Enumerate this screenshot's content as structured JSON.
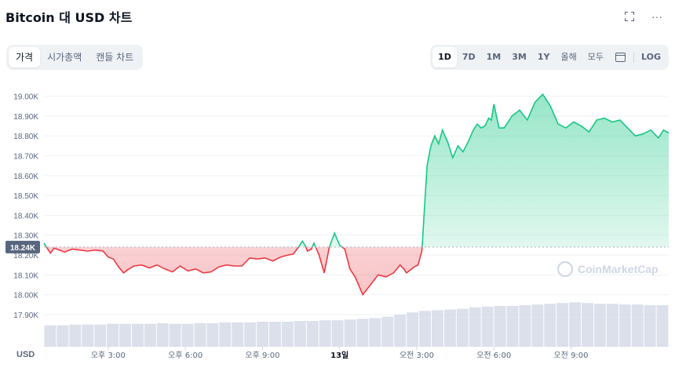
{
  "header": {
    "title": "Bitcoin 대 USD 차트"
  },
  "top_icons": {
    "expand": "expand-icon",
    "more": "···"
  },
  "tabs": [
    {
      "label": "가격",
      "active": true
    },
    {
      "label": "시가총액",
      "active": false
    },
    {
      "label": "캔들 차트",
      "active": false
    }
  ],
  "ranges": [
    {
      "label": "1D",
      "active": true
    },
    {
      "label": "7D",
      "active": false
    },
    {
      "label": "1M",
      "active": false
    },
    {
      "label": "3M",
      "active": false
    },
    {
      "label": "1Y",
      "active": false
    },
    {
      "label": "올해",
      "active": false
    },
    {
      "label": "모두",
      "active": false
    }
  ],
  "calendar_icon": "calendar-icon",
  "log_label": "LOG",
  "chart_data": {
    "type": "area",
    "title": "",
    "xlabel": "",
    "ylabel": "",
    "currency_label": "USD",
    "watermark": "CoinMarketCap",
    "reference_price": 18240,
    "reference_label": "18.24K",
    "ylim": [
      17880,
      19050
    ],
    "y_ticks": [
      17900,
      18000,
      18100,
      18200,
      18300,
      18400,
      18500,
      18600,
      18700,
      18800,
      18900,
      19000
    ],
    "y_tick_labels": [
      "17.90K",
      "18.00K",
      "18.10K",
      "18.20K",
      "18.30K",
      "18.40K",
      "18.50K",
      "18.60K",
      "18.70K",
      "18.80K",
      "18.90K",
      "19.00K"
    ],
    "xlim": [
      12.5,
      36.8
    ],
    "x_ticks": [
      15,
      18,
      21,
      24,
      27,
      30,
      33
    ],
    "x_tick_labels": [
      "오후 3:00",
      "오후 6:00",
      "오후 9:00",
      "13일",
      "오전 3:00",
      "오전 6:00",
      "오전 9:00"
    ],
    "colors": {
      "up": "#16c784",
      "down": "#ea3943",
      "grid": "#eff2f5",
      "volume": "#cfd6e4"
    },
    "series": [
      {
        "x": [
          12.5,
          12.75,
          12.9,
          13.1,
          13.3,
          13.6,
          13.9,
          14.2,
          14.5,
          14.8,
          15.0,
          15.2,
          15.4,
          15.6,
          15.8,
          16.0,
          16.3,
          16.6,
          16.9,
          17.2,
          17.5,
          17.8,
          18.1,
          18.4,
          18.7,
          19.0,
          19.3,
          19.6,
          19.9,
          20.2,
          20.5,
          20.8,
          21.1,
          21.4,
          21.7,
          22.0,
          22.2,
          22.4,
          22.55,
          22.65,
          22.75,
          22.9,
          23.0,
          23.2,
          23.4,
          23.6,
          23.8,
          24.0,
          24.2,
          24.4,
          24.6,
          24.9,
          25.2,
          25.5,
          25.8,
          26.1,
          26.35,
          26.5,
          26.6,
          26.75,
          26.9,
          27.05,
          27.2,
          27.4,
          27.55,
          27.7,
          27.85,
          28.0,
          28.2,
          28.4,
          28.6,
          28.8,
          29.0,
          29.2,
          29.35,
          29.5,
          29.65,
          29.8,
          29.9,
          30.0,
          30.2,
          30.4,
          30.7,
          31.0,
          31.3,
          31.6,
          31.9,
          32.2,
          32.5,
          32.8,
          33.1,
          33.4,
          33.7,
          34.0,
          34.3,
          34.6,
          34.9,
          35.2,
          35.5,
          35.8,
          36.1,
          36.4,
          36.6,
          36.8
        ],
        "y": [
          18260,
          18210,
          18235,
          18225,
          18215,
          18230,
          18225,
          18220,
          18225,
          18220,
          18190,
          18180,
          18140,
          18110,
          18130,
          18145,
          18150,
          18135,
          18150,
          18130,
          18115,
          18145,
          18120,
          18130,
          18110,
          18115,
          18140,
          18150,
          18145,
          18145,
          18185,
          18180,
          18185,
          18170,
          18190,
          18200,
          18205,
          18240,
          18270,
          18250,
          18220,
          18230,
          18260,
          18200,
          18110,
          18240,
          18310,
          18250,
          18230,
          18130,
          18090,
          18000,
          18050,
          18100,
          18090,
          18110,
          18150,
          18130,
          18110,
          18125,
          18140,
          18150,
          18220,
          18650,
          18750,
          18800,
          18760,
          18830,
          18770,
          18690,
          18750,
          18720,
          18770,
          18830,
          18860,
          18840,
          18850,
          18890,
          18880,
          18960,
          18840,
          18840,
          18900,
          18930,
          18880,
          18970,
          19010,
          18950,
          18860,
          18840,
          18870,
          18850,
          18820,
          18880,
          18890,
          18870,
          18880,
          18840,
          18800,
          18810,
          18830,
          18790,
          18830,
          18815
        ]
      }
    ],
    "volume": [
      0.3,
      0.3,
      0.31,
      0.31,
      0.31,
      0.32,
      0.32,
      0.32,
      0.32,
      0.33,
      0.32,
      0.32,
      0.33,
      0.33,
      0.34,
      0.34,
      0.34,
      0.35,
      0.35,
      0.35,
      0.36,
      0.36,
      0.37,
      0.37,
      0.38,
      0.39,
      0.4,
      0.42,
      0.45,
      0.48,
      0.5,
      0.51,
      0.52,
      0.53,
      0.55,
      0.56,
      0.57,
      0.57,
      0.58,
      0.59,
      0.6,
      0.61,
      0.62,
      0.61,
      0.6,
      0.6,
      0.59,
      0.59,
      0.58,
      0.58
    ]
  }
}
